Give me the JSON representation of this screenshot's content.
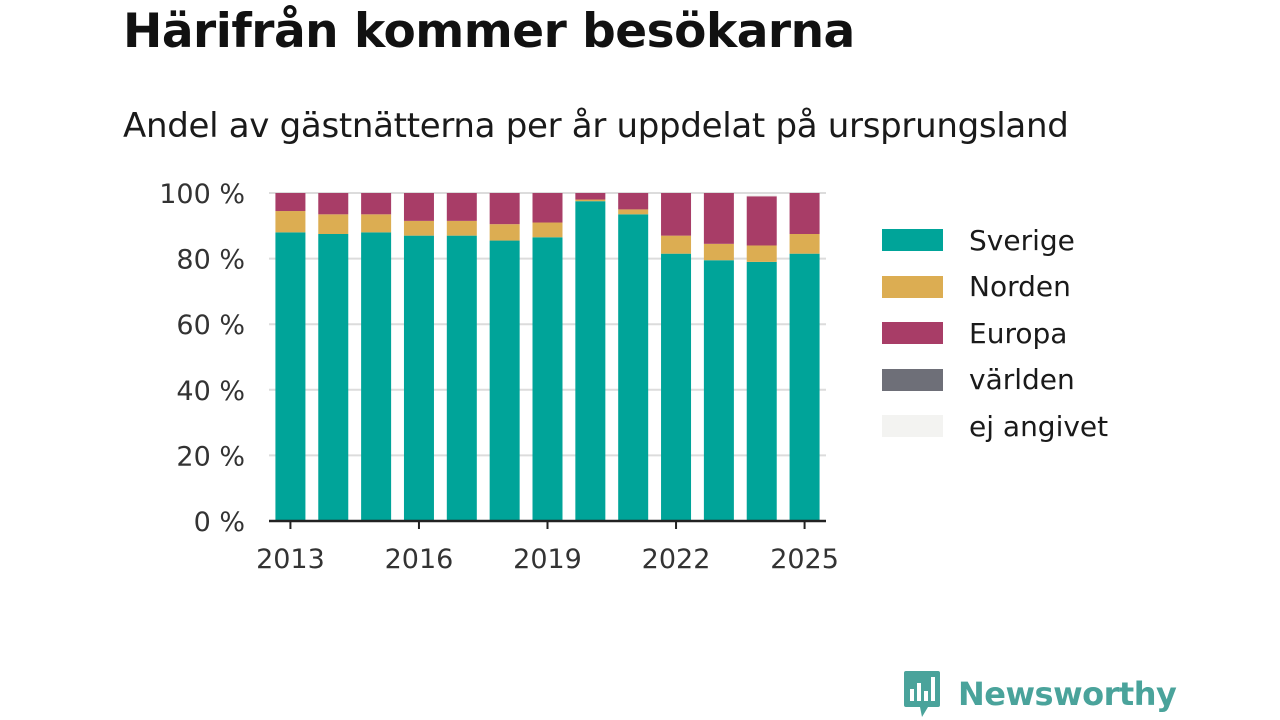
{
  "title": "Härifrån kommer besökarna",
  "subtitle": "Andel av gästnätterna per år uppdelat på ursprungsland",
  "brand": {
    "name": "Newsworthy",
    "icon": "newsworthy-logo-icon",
    "color": "#4aa39b"
  },
  "chart_data": {
    "type": "bar",
    "stacked": true,
    "categories": [
      "2013",
      "2014",
      "2015",
      "2016",
      "2017",
      "2018",
      "2019",
      "2020",
      "2021",
      "2022",
      "2023",
      "2024",
      "2025"
    ],
    "x_tick_labels": [
      "2013",
      "2016",
      "2019",
      "2022",
      "2025"
    ],
    "y_tick_labels": [
      "0 %",
      "20 %",
      "40 %",
      "60 %",
      "80 %",
      "100 %"
    ],
    "ylim": [
      0,
      100
    ],
    "grid": true,
    "legend_position": "right",
    "series": [
      {
        "name": "Sverige",
        "color": "#00a499",
        "values": [
          88,
          87.5,
          88,
          87,
          87,
          85.5,
          86.5,
          97.5,
          93.5,
          81.5,
          79.5,
          79,
          81.5
        ]
      },
      {
        "name": "Norden",
        "color": "#dcad52",
        "values": [
          6.5,
          6,
          5.5,
          4.5,
          4.5,
          5,
          4.5,
          0.5,
          1.5,
          5.5,
          5,
          5,
          6
        ]
      },
      {
        "name": "Europa",
        "color": "#a83d67",
        "values": [
          5.5,
          6.5,
          6.5,
          8.5,
          8.5,
          9.5,
          9,
          2,
          5,
          13,
          15.5,
          15,
          12.5
        ]
      },
      {
        "name": "världen",
        "color": "#6e6f78",
        "values": [
          0,
          0,
          0,
          0,
          0,
          0,
          0,
          0,
          0,
          0,
          0,
          0,
          0
        ]
      },
      {
        "name": "ej angivet",
        "color": "#f3f3f1",
        "values": [
          0,
          0,
          0,
          0,
          0,
          0,
          0,
          0,
          0,
          0,
          0,
          0.5,
          0
        ]
      }
    ]
  }
}
